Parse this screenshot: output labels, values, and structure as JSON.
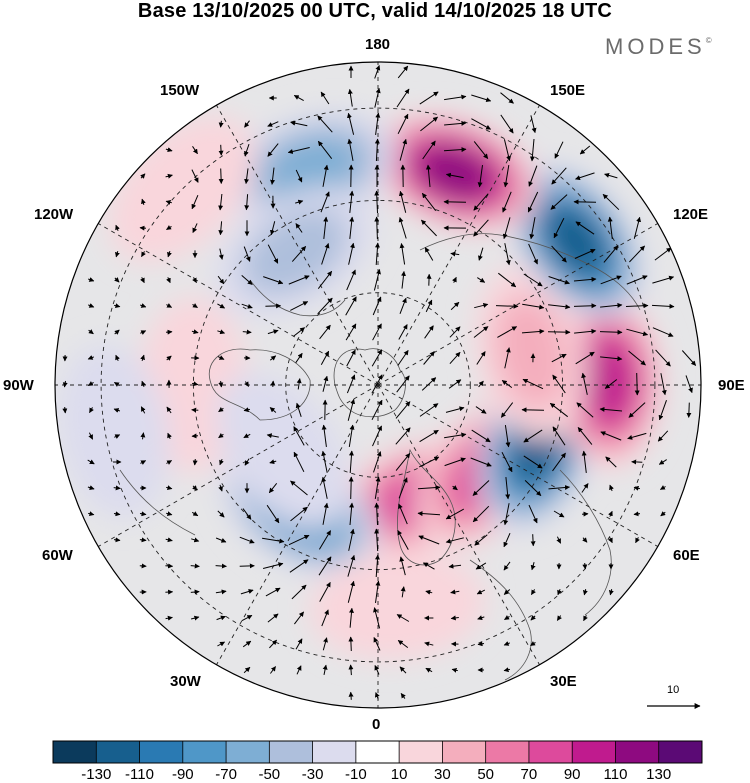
{
  "title": "Base 13/10/2025 00 UTC, valid 14/10/2025 18 UTC",
  "brand": "MODES",
  "brand_mark": "©",
  "longitude_labels": {
    "lon_180": "180",
    "lon_150w": "150W",
    "lon_150e": "150E",
    "lon_120w": "120W",
    "lon_120e": "120E",
    "lon_90w": "90W",
    "lon_90e": "90E",
    "lon_60w": "60W",
    "lon_60e": "60E",
    "lon_30w": "30W",
    "lon_30e": "30E",
    "lon_0": "0"
  },
  "vector_reference": {
    "label": "10",
    "value": 10
  },
  "colorbar": {
    "colors": [
      "#0b3a5c",
      "#175f8e",
      "#2a7ab3",
      "#4f97c8",
      "#7eaed4",
      "#aebfdc",
      "#dcdcee",
      "#ffffff",
      "#f9d6dc",
      "#f4aebd",
      "#ec79a6",
      "#dd4a9c",
      "#c01b8e",
      "#8e0a80",
      "#5b0a75"
    ],
    "tick_labels": [
      "-130",
      "-110",
      "-90",
      "-70",
      "-50",
      "-30",
      "-10",
      "10",
      "30",
      "50",
      "70",
      "90",
      "110",
      "130"
    ]
  },
  "anomaly_centres": [
    {
      "lon": 160,
      "lat": 64,
      "value": 70
    },
    {
      "lon": 129,
      "lat": 60,
      "value": 75
    },
    {
      "lon": 111,
      "lat": 53,
      "value": -115
    },
    {
      "lon": 89,
      "lat": 40,
      "value": 105
    },
    {
      "lon": 78,
      "lat": 56,
      "value": 40
    },
    {
      "lon": 54,
      "lat": 37,
      "value": -120
    },
    {
      "lon": 20,
      "lat": 41,
      "value": 115
    },
    {
      "lon": -17,
      "lat": 41,
      "value": -55
    },
    {
      "lon": -32,
      "lat": 56,
      "value": -45
    },
    {
      "lon": -148,
      "lat": 58,
      "value": -70
    },
    {
      "lon": -90,
      "lat": 50,
      "value": 15
    },
    {
      "lon": -45,
      "lat": 30,
      "value": 20
    },
    {
      "lon": 175,
      "lat": 42,
      "value": 20
    },
    {
      "lon": -125,
      "lat": 65,
      "value": -15
    },
    {
      "lon": -100,
      "lat": 32,
      "value": -15
    }
  ]
}
